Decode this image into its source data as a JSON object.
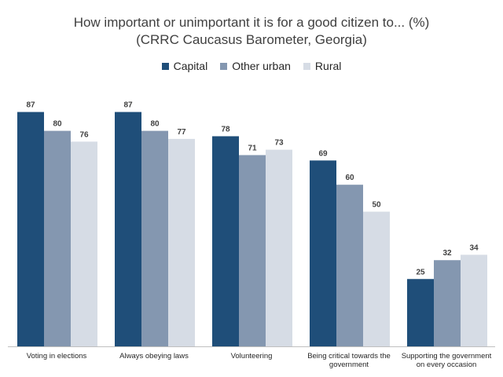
{
  "chart_data": {
    "type": "bar",
    "title": "How important or unimportant it is for a good citizen to... (%)",
    "subtitle": "(CRRC Caucasus Barometer, Georgia)",
    "categories": [
      "Voting in elections",
      "Always obeying laws",
      "Volunteering",
      "Being critical towards the government",
      "Supporting the government on every occasion"
    ],
    "series": [
      {
        "name": "Capital",
        "color": "#1f4e79",
        "values": [
          87,
          87,
          78,
          69,
          25
        ]
      },
      {
        "name": "Other urban",
        "color": "#8497b0",
        "values": [
          80,
          80,
          71,
          60,
          32
        ]
      },
      {
        "name": "Rural",
        "color": "#d6dce5",
        "values": [
          76,
          77,
          73,
          50,
          34
        ]
      }
    ],
    "ylim": [
      0,
      100
    ],
    "legend_position": "top",
    "grid": false,
    "data_labels": true
  }
}
